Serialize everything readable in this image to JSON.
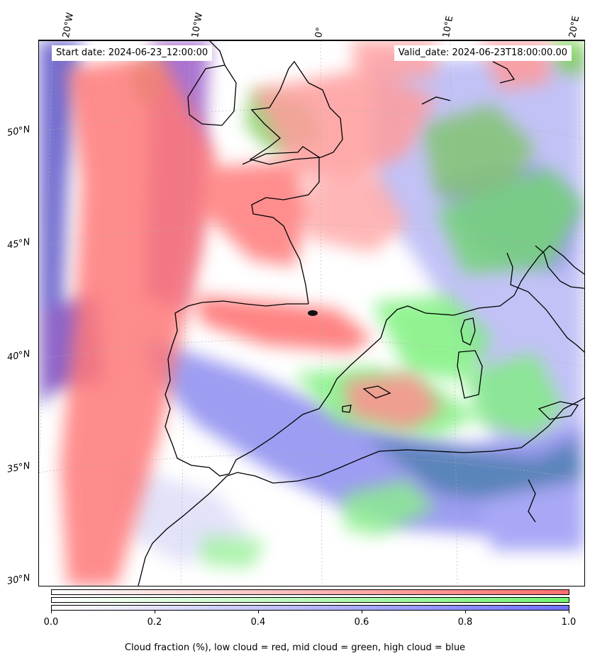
{
  "map": {
    "start_date": "Start date: 2024-06-23_12:00:00",
    "valid_date": "Valid_date: 2024-06-23T18:00:00.00",
    "lon_labels": [
      "20°W",
      "10°W",
      "0°",
      "10°E",
      "20°E"
    ],
    "lat_labels": [
      "50°N",
      "45°N",
      "40°N",
      "35°N",
      "30°N"
    ]
  },
  "colorbar": {
    "ticks": [
      "0.0",
      "0.2",
      "0.4",
      "0.6",
      "0.8",
      "1.0"
    ],
    "caption": "Cloud fraction (%), low cloud = red, mid cloud = green, high cloud = blue",
    "colors": {
      "low": "#ff6f6f",
      "mid": "#72f572",
      "high": "#7070ff"
    }
  }
}
